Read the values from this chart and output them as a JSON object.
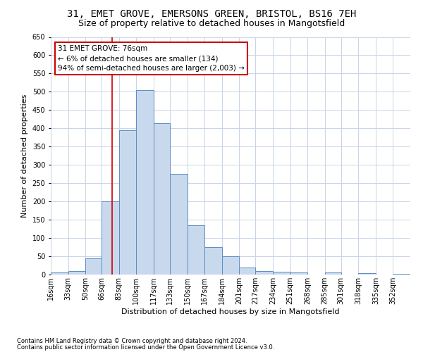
{
  "title1": "31, EMET GROVE, EMERSONS GREEN, BRISTOL, BS16 7EH",
  "title2": "Size of property relative to detached houses in Mangotsfield",
  "xlabel": "Distribution of detached houses by size in Mangotsfield",
  "ylabel": "Number of detached properties",
  "bin_labels": [
    "16sqm",
    "33sqm",
    "50sqm",
    "66sqm",
    "83sqm",
    "100sqm",
    "117sqm",
    "133sqm",
    "150sqm",
    "167sqm",
    "184sqm",
    "201sqm",
    "217sqm",
    "234sqm",
    "251sqm",
    "268sqm",
    "285sqm",
    "301sqm",
    "318sqm",
    "335sqm",
    "352sqm"
  ],
  "bar_heights": [
    5,
    10,
    45,
    200,
    395,
    505,
    415,
    275,
    135,
    75,
    50,
    20,
    10,
    7,
    5,
    0,
    5,
    0,
    3,
    0,
    2
  ],
  "bar_color": "#c9d9ed",
  "bar_edge_color": "#5b8dc4",
  "bin_edges": [
    16,
    33,
    50,
    66,
    83,
    100,
    117,
    133,
    150,
    167,
    184,
    201,
    217,
    234,
    251,
    268,
    285,
    301,
    318,
    335,
    352,
    369
  ],
  "red_line_x": 76,
  "ylim": [
    0,
    650
  ],
  "yticks": [
    0,
    50,
    100,
    150,
    200,
    250,
    300,
    350,
    400,
    450,
    500,
    550,
    600,
    650
  ],
  "annotation_line1": "31 EMET GROVE: 76sqm",
  "annotation_line2": "← 6% of detached houses are smaller (134)",
  "annotation_line3": "94% of semi-detached houses are larger (2,003) →",
  "footer1": "Contains HM Land Registry data © Crown copyright and database right 2024.",
  "footer2": "Contains public sector information licensed under the Open Government Licence v3.0.",
  "background_color": "#ffffff",
  "grid_color": "#c8d4e8",
  "title1_fontsize": 10,
  "title2_fontsize": 9,
  "ylabel_fontsize": 8,
  "xlabel_fontsize": 8,
  "annotation_fontsize": 7.5,
  "tick_fontsize": 7,
  "footer_fontsize": 6,
  "annotation_box_facecolor": "#ffffff",
  "annotation_box_edgecolor": "#cc0000"
}
